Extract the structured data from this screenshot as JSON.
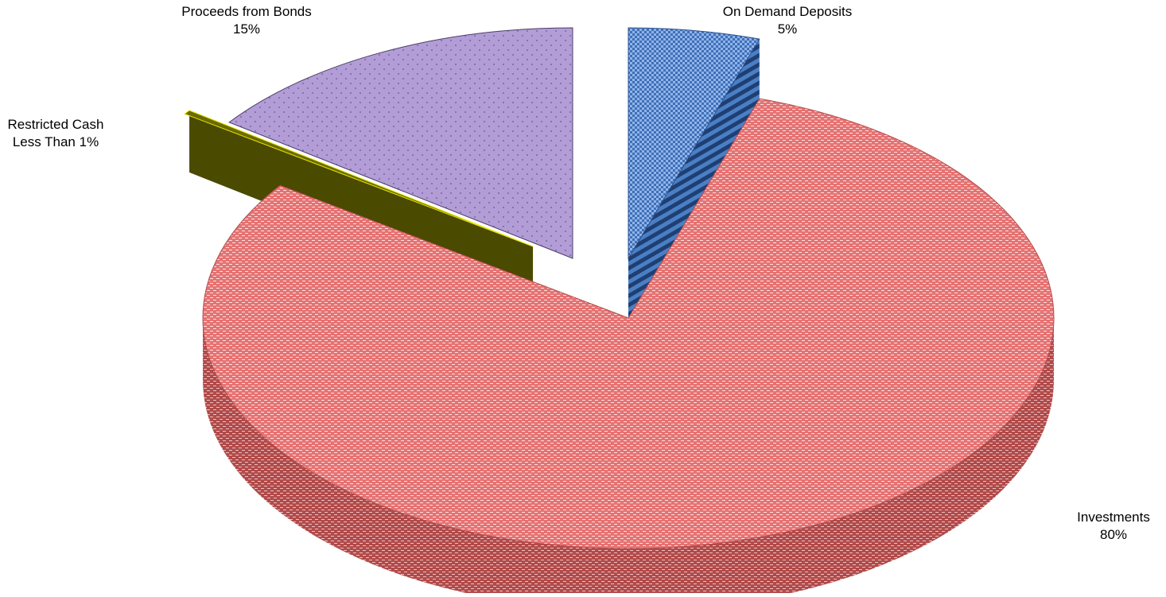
{
  "chart_data": {
    "type": "pie",
    "title": "",
    "slices": [
      {
        "label": "On Demand Deposits",
        "value_label": "5%",
        "value": 5,
        "color": "#4a7fc4"
      },
      {
        "label": "Investments",
        "value_label": "80%",
        "value": 80,
        "color": "#e06b6b"
      },
      {
        "label": "Restricted Cash",
        "label2": "Less Than 1%",
        "value": 0.3,
        "color": "#6b6b00"
      },
      {
        "label": "Proceeds from Bonds",
        "value_label": "15%",
        "value": 15,
        "color": "#a994c8"
      }
    ]
  }
}
